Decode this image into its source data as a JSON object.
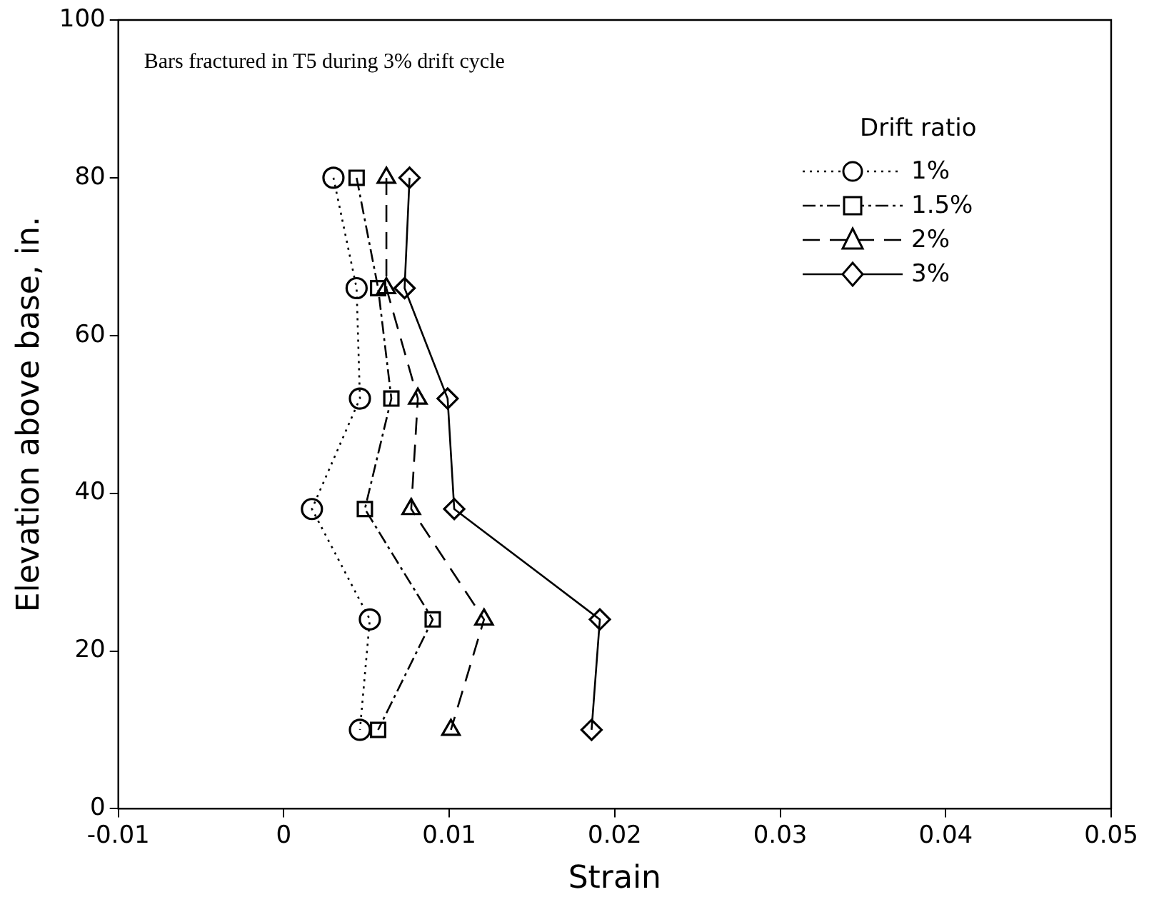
{
  "chart_data": {
    "type": "line",
    "xlabel": "Strain",
    "ylabel": "Elevation above base, in.",
    "legend_title": "Drift ratio",
    "legend": "top right",
    "grid": false,
    "annotations": [
      "Bars fractured in T5 during 3% drift cycle"
    ],
    "xlim": [
      -0.01,
      0.05
    ],
    "xticks": [
      -0.01,
      0,
      0.01,
      0.02,
      0.03,
      0.04,
      0.05
    ],
    "ylim": [
      0,
      100
    ],
    "yticks": [
      0,
      20,
      40,
      60,
      80,
      100
    ],
    "series": [
      {
        "name": "1%",
        "color": "#000000",
        "marker": "circle",
        "line_style": "dotted",
        "x": [
          0.003,
          0.0044,
          0.0046,
          0.0017,
          0.0052,
          0.0046
        ],
        "values": [
          80,
          66,
          52,
          38,
          24,
          10
        ]
      },
      {
        "name": "1.5%",
        "color": "#000000",
        "marker": "square",
        "line_style": "dashdot",
        "x": [
          0.0044,
          0.0057,
          0.0065,
          0.0049,
          0.009,
          0.0057
        ],
        "values": [
          80,
          66,
          52,
          38,
          24,
          10
        ]
      },
      {
        "name": "2%",
        "color": "#000000",
        "marker": "triangle",
        "line_style": "dashed",
        "x": [
          0.0062,
          0.0062,
          0.0081,
          0.0077,
          0.0121,
          0.0101
        ],
        "values": [
          80,
          66,
          52,
          38,
          24,
          10
        ]
      },
      {
        "name": "3%",
        "color": "#000000",
        "marker": "diamond",
        "line_style": "solid",
        "x": [
          0.0076,
          0.0073,
          0.0099,
          0.0103,
          0.0191,
          0.0186
        ],
        "values": [
          80,
          66,
          52,
          38,
          24,
          10
        ]
      }
    ]
  }
}
